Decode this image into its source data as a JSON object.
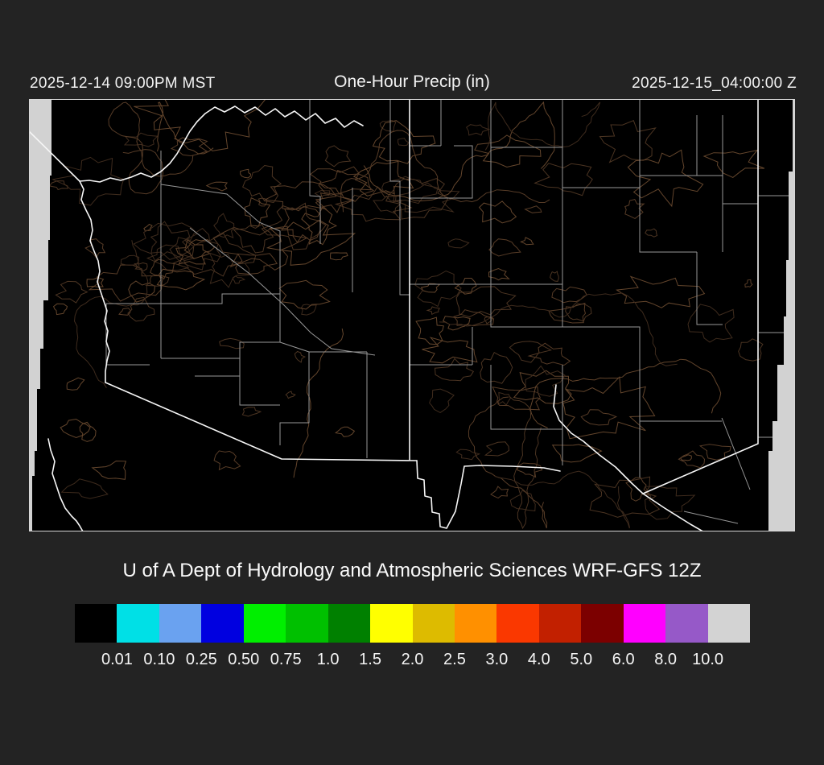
{
  "header": {
    "valid_local": "2025-12-14 09:00PM MST",
    "title": "One-Hour Precip (in)",
    "valid_utc": "2025-12-15_04:00:00 Z"
  },
  "caption": "U of A Dept of Hydrology and Atmospheric Sciences WRF-GFS 12Z",
  "legend": {
    "tick_labels": [
      "0.01",
      "0.10",
      "0.25",
      "0.50",
      "0.75",
      "1.0",
      "1.5",
      "2.0",
      "2.5",
      "3.0",
      "4.0",
      "5.0",
      "6.0",
      "8.0",
      "10.0"
    ],
    "colors": [
      "#000000",
      "#00e0e6",
      "#6aa2f0",
      "#0000e0",
      "#00ef00",
      "#00c000",
      "#008000",
      "#ffff00",
      "#ddbb00",
      "#ff9000",
      "#fa3800",
      "#c22000",
      "#7c0000",
      "#ff00ff",
      "#9659c8",
      "#d3d3d3"
    ]
  },
  "map": {
    "colors": {
      "background": "#000000",
      "state_border": "#f6f6f6",
      "county_border": "#979797",
      "terrain_contour": "#4b3422",
      "outside_domain": "#d2d2d2",
      "frame": "#d8d8d8"
    }
  },
  "chart_data": {
    "type": "heatmap",
    "title": "One-Hour Precip (in)",
    "legend_position": "bottom",
    "color_scale_thresholds": [
      0.01,
      0.1,
      0.25,
      0.5,
      0.75,
      1.0,
      1.5,
      2.0,
      2.5,
      3.0,
      4.0,
      5.0,
      6.0,
      8.0,
      10.0
    ],
    "color_scale_colors": [
      "#000000",
      "#00e0e6",
      "#6aa2f0",
      "#0000e0",
      "#00ef00",
      "#00c000",
      "#008000",
      "#ffff00",
      "#ddbb00",
      "#ff9000",
      "#fa3800",
      "#c22000",
      "#7c0000",
      "#ff00ff",
      "#9659c8",
      "#d3d3d3"
    ]
  }
}
